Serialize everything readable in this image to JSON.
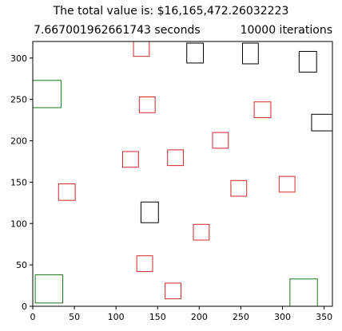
{
  "header": {
    "value_line": "The total value is: $16,165,472.26032223",
    "time_line": "7.667001962661743 seconds",
    "iterations_line": "10000 iterations"
  },
  "chart_data": {
    "type": "scatter",
    "title": "",
    "xlabel": "",
    "ylabel": "",
    "xlim": [
      0,
      360
    ],
    "ylim": [
      0,
      320
    ],
    "x_ticks": [
      0,
      50,
      100,
      150,
      200,
      250,
      300,
      350
    ],
    "y_ticks": [
      0,
      50,
      100,
      150,
      200,
      250,
      300
    ],
    "grid": false,
    "colors": {
      "red": "#d62728",
      "black": "#000000",
      "green": "#1a7a1a"
    },
    "rectangles": [
      {
        "color": "red",
        "x0": 121,
        "y0": 302,
        "x1": 140,
        "y1": 320
      },
      {
        "color": "red",
        "x0": 128,
        "y0": 234,
        "x1": 147,
        "y1": 253
      },
      {
        "color": "red",
        "x0": 266,
        "y0": 228,
        "x1": 286,
        "y1": 247
      },
      {
        "color": "red",
        "x0": 216,
        "y0": 191,
        "x1": 235,
        "y1": 210
      },
      {
        "color": "red",
        "x0": 108,
        "y0": 168,
        "x1": 127,
        "y1": 187
      },
      {
        "color": "red",
        "x0": 162,
        "y0": 170,
        "x1": 181,
        "y1": 189
      },
      {
        "color": "red",
        "x0": 31,
        "y0": 128,
        "x1": 51,
        "y1": 148
      },
      {
        "color": "red",
        "x0": 238,
        "y0": 133,
        "x1": 257,
        "y1": 152
      },
      {
        "color": "red",
        "x0": 296,
        "y0": 138,
        "x1": 315,
        "y1": 157
      },
      {
        "color": "red",
        "x0": 193,
        "y0": 80,
        "x1": 212,
        "y1": 99
      },
      {
        "color": "red",
        "x0": 125,
        "y0": 42,
        "x1": 144,
        "y1": 61
      },
      {
        "color": "red",
        "x0": 159,
        "y0": 9,
        "x1": 178,
        "y1": 28
      },
      {
        "color": "black",
        "x0": 185,
        "y0": 294,
        "x1": 205,
        "y1": 318
      },
      {
        "color": "black",
        "x0": 252,
        "y0": 293,
        "x1": 271,
        "y1": 318
      },
      {
        "color": "black",
        "x0": 320,
        "y0": 283,
        "x1": 341,
        "y1": 308
      },
      {
        "color": "black",
        "x0": 335,
        "y0": 212,
        "x1": 360,
        "y1": 232
      },
      {
        "color": "black",
        "x0": 130,
        "y0": 101,
        "x1": 151,
        "y1": 126
      },
      {
        "color": "green",
        "x0": 0,
        "y0": 240,
        "x1": 34,
        "y1": 273
      },
      {
        "color": "green",
        "x0": 3,
        "y0": 4,
        "x1": 36,
        "y1": 38
      },
      {
        "color": "green",
        "x0": 309,
        "y0": 0,
        "x1": 342,
        "y1": 33
      }
    ]
  }
}
